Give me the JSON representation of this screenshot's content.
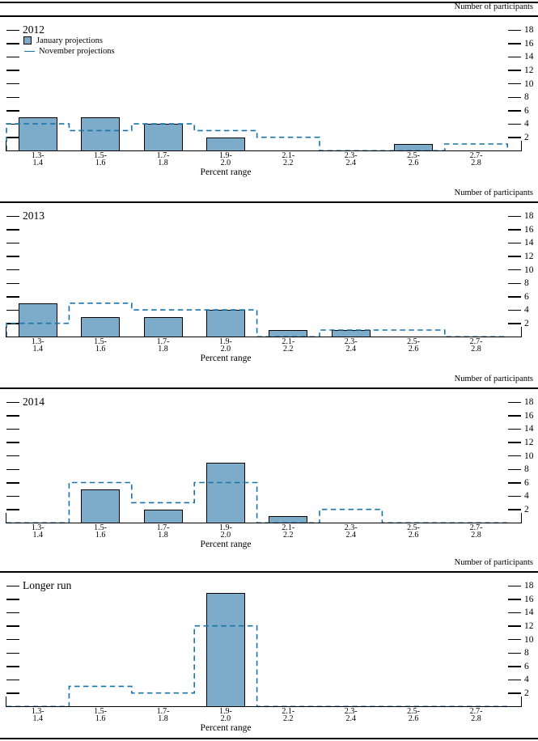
{
  "figure": {
    "right_axis_label": "Number of participants",
    "x_axis_label": "Percent range",
    "y_ticks": [
      2,
      4,
      6,
      8,
      10,
      12,
      14,
      16,
      18
    ],
    "legend": {
      "january": "January projections",
      "november": "November projections"
    },
    "colors": {
      "bar_fill": "#7dabca",
      "bar_border": "#000000",
      "november_line": "#1874a8",
      "text": "#000000"
    }
  },
  "chart_data": [
    {
      "type": "bar",
      "title": "2012",
      "categories": [
        "1.3-\n1.4",
        "1.5-\n1.6",
        "1.7-\n1.8",
        "1.9-\n2.0",
        "2.1-\n2.2",
        "2.3-\n2.4",
        "2.5-\n2.6",
        "2.7-\n2.8"
      ],
      "xlabel": "Percent range",
      "ylabel": "Number of participants",
      "ylim": [
        0,
        20
      ],
      "grid": false,
      "legend_position": "top-left",
      "series": [
        {
          "name": "January projections",
          "style": "bar",
          "values": [
            5,
            5,
            4,
            2,
            0,
            0,
            1,
            0
          ]
        },
        {
          "name": "November projections",
          "style": "dashed-step",
          "values": [
            4,
            3,
            4,
            3,
            2,
            0,
            0,
            1
          ]
        }
      ]
    },
    {
      "type": "bar",
      "title": "2013",
      "categories": [
        "1.3-\n1.4",
        "1.5-\n1.6",
        "1.7-\n1.8",
        "1.9-\n2.0",
        "2.1-\n2.2",
        "2.3-\n2.4",
        "2.5-\n2.6",
        "2.7-\n2.8"
      ],
      "xlabel": "Percent range",
      "ylabel": "Number of participants",
      "ylim": [
        0,
        20
      ],
      "grid": false,
      "series": [
        {
          "name": "January projections",
          "style": "bar",
          "values": [
            5,
            3,
            3,
            4,
            1,
            1,
            0,
            0
          ]
        },
        {
          "name": "November projections",
          "style": "dashed-step",
          "values": [
            2,
            5,
            4,
            4,
            0,
            1,
            1,
            0
          ]
        }
      ]
    },
    {
      "type": "bar",
      "title": "2014",
      "categories": [
        "1.3-\n1.4",
        "1.5-\n1.6",
        "1.7-\n1.8",
        "1.9-\n2.0",
        "2.1-\n2.2",
        "2.3-\n2.4",
        "2.5-\n2.6",
        "2.7-\n2.8"
      ],
      "xlabel": "Percent range",
      "ylabel": "Number of participants",
      "ylim": [
        0,
        20
      ],
      "grid": false,
      "series": [
        {
          "name": "January projections",
          "style": "bar",
          "values": [
            0,
            5,
            2,
            9,
            1,
            0,
            0,
            0
          ]
        },
        {
          "name": "November projections",
          "style": "dashed-step",
          "values": [
            0,
            6,
            3,
            6,
            0,
            2,
            0,
            0
          ]
        }
      ]
    },
    {
      "type": "bar",
      "title": "Longer run",
      "categories": [
        "1.3-\n1.4",
        "1.5-\n1.6",
        "1.7-\n1.8",
        "1.9-\n2.0",
        "2.1-\n2.2",
        "2.3-\n2.4",
        "2.5-\n2.6",
        "2.7-\n2.8"
      ],
      "xlabel": "Percent range",
      "ylabel": "Number of participants",
      "ylim": [
        0,
        20
      ],
      "grid": false,
      "series": [
        {
          "name": "January projections",
          "style": "bar",
          "values": [
            0,
            0,
            0,
            17,
            0,
            0,
            0,
            0
          ]
        },
        {
          "name": "November projections",
          "style": "dashed-step",
          "values": [
            0,
            3,
            2,
            12,
            0,
            0,
            0,
            0
          ]
        }
      ]
    }
  ]
}
